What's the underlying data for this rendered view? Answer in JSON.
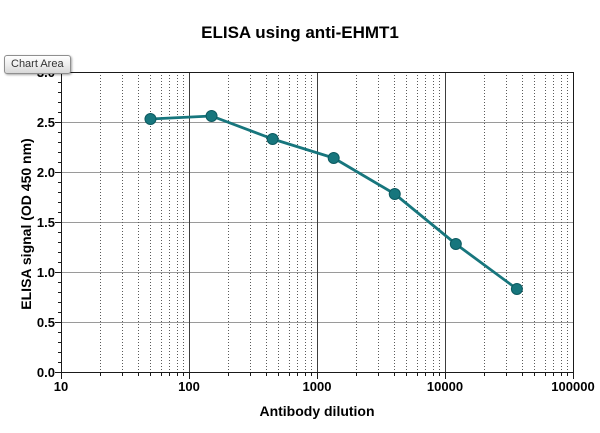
{
  "window": {
    "tooltip_label": "Chart Area"
  },
  "colors": {
    "series": "#17767D",
    "series_marker_edge": "#0D5A60",
    "grid_horizontal": "#9a9a9a",
    "grid_vertical_major": "#3d3d3d",
    "grid_vertical_minor": "#5a5a5a",
    "axis": "#1a1a1a",
    "background": "#ffffff"
  },
  "chart_data": {
    "type": "line",
    "title": "ELISA using anti-EHMT1",
    "xlabel": "Antibody dilution",
    "ylabel": "ELISA signal (OD 450 nm)",
    "x_scale": "log10",
    "xlim": [
      10,
      100000
    ],
    "ylim": [
      0.0,
      3.0
    ],
    "x_ticks": [
      {
        "value": 10,
        "label": "10"
      },
      {
        "value": 100,
        "label": "100"
      },
      {
        "value": 1000,
        "label": "1000"
      },
      {
        "value": 10000,
        "label": "10000"
      },
      {
        "value": 100000,
        "label": "100000"
      }
    ],
    "y_ticks": [
      {
        "value": 0.0,
        "label": "0.0"
      },
      {
        "value": 0.5,
        "label": "0.5"
      },
      {
        "value": 1.0,
        "label": "1.0"
      },
      {
        "value": 1.5,
        "label": "1.5"
      },
      {
        "value": 2.0,
        "label": "2.0"
      },
      {
        "value": 2.5,
        "label": "2.5"
      },
      {
        "value": 3.0,
        "label": "3.0"
      }
    ],
    "y_minor_tick_step": 0.1,
    "grid": {
      "horizontal_major": true,
      "vertical_major": true,
      "vertical_minor_log": true
    },
    "legend": "none",
    "series": [
      {
        "marker": "circle",
        "points": [
          {
            "x": 50,
            "y": 2.53
          },
          {
            "x": 150,
            "y": 2.56
          },
          {
            "x": 450,
            "y": 2.33
          },
          {
            "x": 1350,
            "y": 2.14
          },
          {
            "x": 4050,
            "y": 1.78
          },
          {
            "x": 12150,
            "y": 1.28
          },
          {
            "x": 36450,
            "y": 0.83
          }
        ]
      }
    ]
  }
}
